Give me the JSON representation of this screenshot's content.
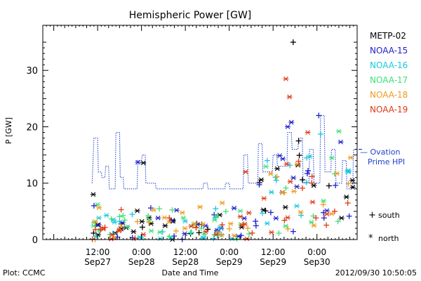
{
  "chart_data": {
    "type": "scatter",
    "title": "Hemispheric Power [GW]",
    "ylabel": "P [GW]",
    "xlabel": "Date and Time",
    "ylim": [
      0,
      38
    ],
    "yticks": [
      0,
      10,
      20,
      30
    ],
    "xlim_hours": [
      -15,
      71
    ],
    "xticks": [
      {
        "h": 0,
        "line1": "12:00",
        "line2": "Sep27"
      },
      {
        "h": 12,
        "line1": "0:00",
        "line2": "Sep28"
      },
      {
        "h": 24,
        "line1": "12:00",
        "line2": "Sep28"
      },
      {
        "h": 36,
        "line1": "0:00",
        "line2": "Sep29"
      },
      {
        "h": 48,
        "line1": "12:00",
        "line2": "Sep29"
      },
      {
        "h": 60,
        "line1": "0:00",
        "line2": "Sep30"
      }
    ],
    "footer_left": "Plot: CCMC",
    "footer_right": "2012/09/30 10:50:05",
    "legend": [
      {
        "name": "METP-02",
        "color": "#000000"
      },
      {
        "name": "NOAA-15",
        "color": "#1f1fcc"
      },
      {
        "name": "NOAA-16",
        "color": "#19c8e0"
      },
      {
        "name": "NOAA-17",
        "color": "#3ee07a"
      },
      {
        "name": "NOAA-18",
        "color": "#f09a1c"
      },
      {
        "name": "NOAA-19",
        "color": "#dc3a14"
      }
    ],
    "ovation_label": "— Ovation Prime HPI",
    "ovation_label_lines": [
      "— Ovation",
      "Prime HPI"
    ],
    "symbol_legend": [
      {
        "symbol": "+",
        "label": "south"
      },
      {
        "symbol": "*",
        "label": "north"
      }
    ],
    "ovation_series": {
      "name": "Ovation Prime HPI",
      "color": "#1f3fd0",
      "points": [
        [
          -1.5,
          10
        ],
        [
          -1.0,
          18
        ],
        [
          0.0,
          18
        ],
        [
          0.2,
          12
        ],
        [
          1.0,
          12
        ],
        [
          1.2,
          11
        ],
        [
          2.0,
          11
        ],
        [
          2.2,
          13
        ],
        [
          3.0,
          13
        ],
        [
          3.2,
          9
        ],
        [
          4.8,
          9
        ],
        [
          5.0,
          19
        ],
        [
          6.0,
          19
        ],
        [
          6.2,
          11
        ],
        [
          7.0,
          11
        ],
        [
          7.2,
          9
        ],
        [
          10.8,
          9
        ],
        [
          11.0,
          14
        ],
        [
          12.0,
          14
        ],
        [
          12.2,
          15
        ],
        [
          13.0,
          15
        ],
        [
          13.2,
          10
        ],
        [
          15.8,
          10
        ],
        [
          16.0,
          9
        ],
        [
          28.8,
          9
        ],
        [
          29.0,
          10
        ],
        [
          30.0,
          10
        ],
        [
          30.2,
          9
        ],
        [
          34.8,
          9
        ],
        [
          35.0,
          10
        ],
        [
          36.0,
          10
        ],
        [
          36.2,
          9
        ],
        [
          39.8,
          9
        ],
        [
          40.0,
          15
        ],
        [
          41.0,
          15
        ],
        [
          41.2,
          10
        ],
        [
          43.8,
          10
        ],
        [
          44.0,
          17
        ],
        [
          45.0,
          17
        ],
        [
          45.2,
          12
        ],
        [
          47.8,
          12
        ],
        [
          48.0,
          15
        ],
        [
          49.0,
          15
        ],
        [
          49.2,
          13
        ],
        [
          51.8,
          13
        ],
        [
          52.0,
          19
        ],
        [
          53.0,
          19
        ],
        [
          53.2,
          16
        ],
        [
          54.8,
          16
        ],
        [
          55.0,
          18
        ],
        [
          56.0,
          18
        ],
        [
          56.2,
          10
        ],
        [
          57.8,
          10
        ],
        [
          58.0,
          16
        ],
        [
          59.0,
          16
        ],
        [
          59.2,
          10
        ],
        [
          60.8,
          10
        ],
        [
          61.0,
          22
        ],
        [
          62.0,
          22
        ],
        [
          62.2,
          12
        ],
        [
          63.8,
          12
        ],
        [
          64.0,
          16
        ],
        [
          65.0,
          16
        ],
        [
          65.2,
          10
        ],
        [
          66.8,
          10
        ],
        [
          67.0,
          14
        ],
        [
          68.0,
          14
        ],
        [
          68.2,
          9
        ],
        [
          69.8,
          9
        ],
        [
          70.0,
          16
        ],
        [
          71.0,
          16
        ]
      ]
    },
    "satellite_points": {
      "x_min": -1.5,
      "x_max": 70,
      "count_per_series": 40,
      "baseline_range": [
        0,
        7
      ],
      "notes": "dense low-value scatter (approx 0-7 GW) throughout, rising to ~10-20 GW after Sep29 ~16:00"
    },
    "highlight_points": [
      {
        "series": "METP-02",
        "sym": "+",
        "x": 53.5,
        "y": 35
      },
      {
        "series": "NOAA-19",
        "sym": "*",
        "x": 51.5,
        "y": 28.5
      },
      {
        "series": "NOAA-19",
        "sym": "*",
        "x": 52.5,
        "y": 25.3
      },
      {
        "series": "NOAA-15",
        "sym": "+",
        "x": 60.5,
        "y": 22
      },
      {
        "series": "NOAA-15",
        "sym": "*",
        "x": 52.0,
        "y": 20
      },
      {
        "series": "NOAA-15",
        "sym": "*",
        "x": 53.0,
        "y": 20.8
      },
      {
        "series": "NOAA-16",
        "sym": "+",
        "x": 61.0,
        "y": 18.7
      },
      {
        "series": "NOAA-17",
        "sym": "*",
        "x": 66.0,
        "y": 19.2
      },
      {
        "series": "NOAA-19",
        "sym": "*",
        "x": 57.5,
        "y": 19
      },
      {
        "series": "METP-02",
        "sym": "+",
        "x": 55.0,
        "y": 17.5
      },
      {
        "series": "NOAA-15",
        "sym": "*",
        "x": 66.5,
        "y": 17.3
      },
      {
        "series": "NOAA-15",
        "sym": "*",
        "x": 11.0,
        "y": 13.7
      },
      {
        "series": "METP-02",
        "sym": "*",
        "x": 12.5,
        "y": 13.6
      },
      {
        "series": "NOAA-19",
        "sym": "*",
        "x": 40.5,
        "y": 12
      },
      {
        "series": "METP-02",
        "sym": "*",
        "x": -1.2,
        "y": 8
      },
      {
        "series": "NOAA-15",
        "sym": "+",
        "x": -1.0,
        "y": 6
      }
    ]
  }
}
